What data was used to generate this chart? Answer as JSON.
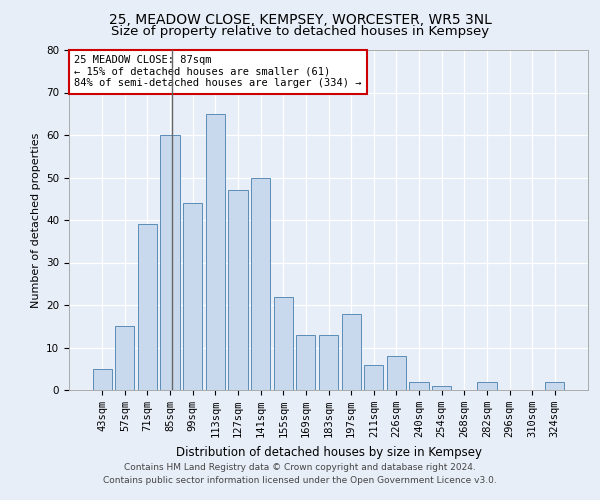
{
  "title_line1": "25, MEADOW CLOSE, KEMPSEY, WORCESTER, WR5 3NL",
  "title_line2": "Size of property relative to detached houses in Kempsey",
  "xlabel": "Distribution of detached houses by size in Kempsey",
  "ylabel": "Number of detached properties",
  "categories": [
    "43sqm",
    "57sqm",
    "71sqm",
    "85sqm",
    "99sqm",
    "113sqm",
    "127sqm",
    "141sqm",
    "155sqm",
    "169sqm",
    "183sqm",
    "197sqm",
    "211sqm",
    "226sqm",
    "240sqm",
    "254sqm",
    "268sqm",
    "282sqm",
    "296sqm",
    "310sqm",
    "324sqm"
  ],
  "values": [
    5,
    15,
    39,
    60,
    44,
    65,
    47,
    50,
    22,
    13,
    13,
    18,
    6,
    8,
    2,
    1,
    0,
    2,
    0,
    0,
    2
  ],
  "bar_color": "#c8d9ed",
  "bar_edge_color": "#5b8db8",
  "annotation_text": "25 MEADOW CLOSE: 87sqm\n← 15% of detached houses are smaller (61)\n84% of semi-detached houses are larger (334) →",
  "annotation_box_color": "#ffffff",
  "annotation_box_edge_color": "#cc0000",
  "vline_x_index": 3.1,
  "ylim": [
    0,
    80
  ],
  "yticks": [
    0,
    10,
    20,
    30,
    40,
    50,
    60,
    70,
    80
  ],
  "background_color": "#e8eef8",
  "plot_background": "#e8eef8",
  "grid_color": "#ffffff",
  "footer_line1": "Contains HM Land Registry data © Crown copyright and database right 2024.",
  "footer_line2": "Contains public sector information licensed under the Open Government Licence v3.0.",
  "title1_fontsize": 10,
  "title2_fontsize": 9.5,
  "xlabel_fontsize": 8.5,
  "ylabel_fontsize": 8,
  "tick_fontsize": 7.5,
  "ann_fontsize": 7.5,
  "footer_fontsize": 6.5
}
